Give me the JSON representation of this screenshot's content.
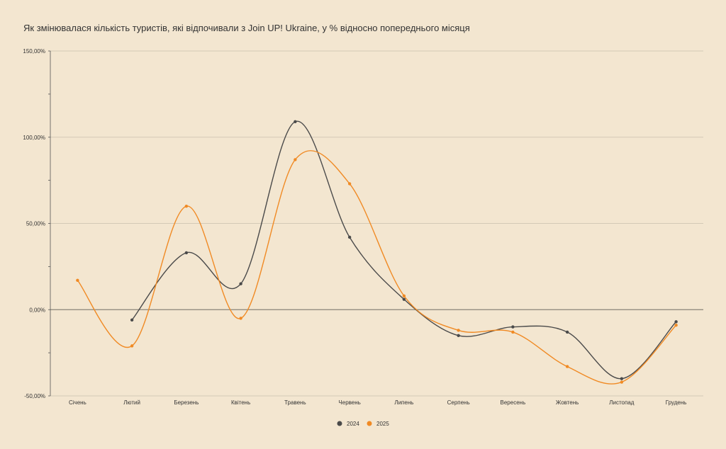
{
  "chart_data": {
    "type": "line",
    "title": "Як змінювалася кількість туристів, які відпочивали з Join UP! Ukraine, у % відносно попереднього місяця",
    "categories": [
      "Січень",
      "Лютий",
      "Березень",
      "Квітень",
      "Травень",
      "Червень",
      "Липень",
      "Серпень",
      "Вересень",
      "Жовтень",
      "Листопад",
      "Грудень"
    ],
    "series": [
      {
        "name": "2024",
        "color": "#4a4a4a",
        "values": [
          null,
          -6,
          33,
          15,
          109,
          42,
          6,
          -15,
          -10,
          -13,
          -40,
          -7
        ]
      },
      {
        "name": "2025",
        "color": "#f08a24",
        "values": [
          17,
          -21,
          60,
          -5,
          87,
          73,
          8,
          -12,
          -13,
          -33,
          -42,
          -9
        ]
      }
    ],
    "ylim": [
      -50,
      150
    ],
    "yticks": [
      -50,
      0,
      50,
      100,
      150
    ],
    "ytick_labels": [
      "-50,00%",
      "0,00%",
      "50,00%",
      "100,00%",
      "150,00%"
    ],
    "grid": true,
    "legend_position": "bottom-center"
  }
}
